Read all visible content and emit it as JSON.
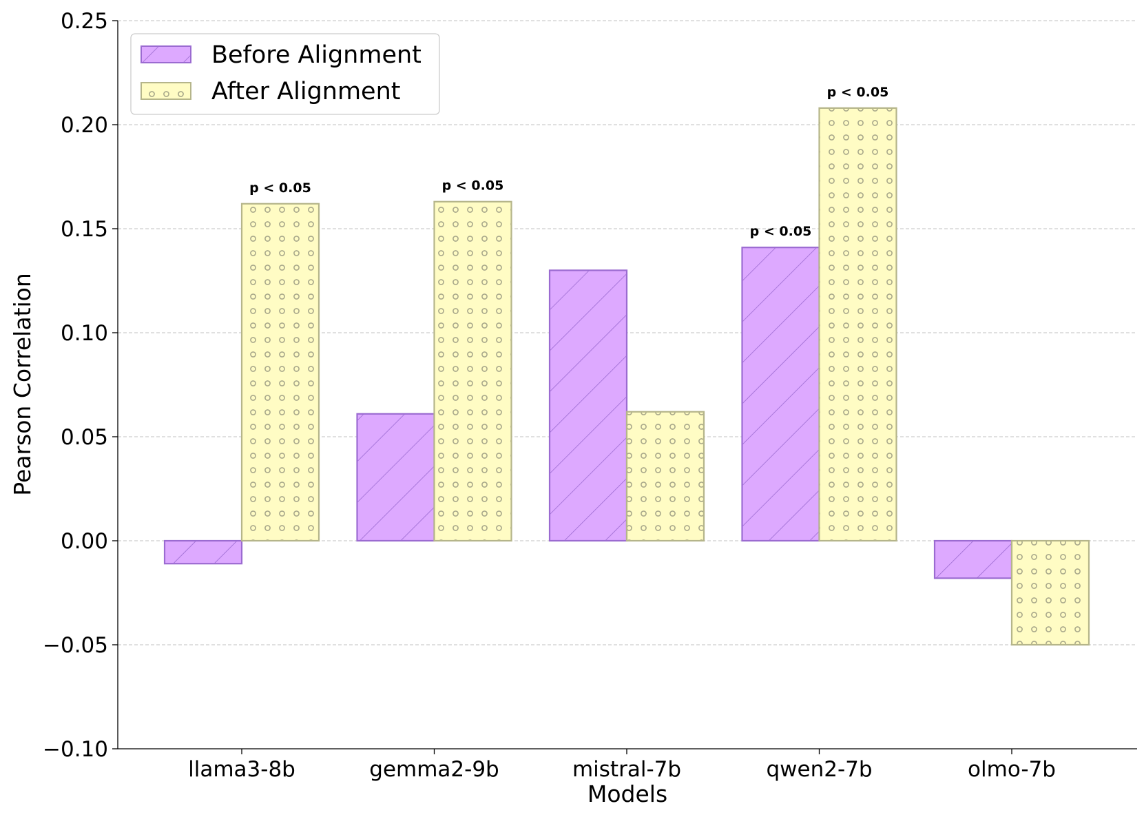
{
  "chart_data": {
    "type": "bar",
    "title": "",
    "xlabel": "Models",
    "ylabel": "Pearson Correlation",
    "categories": [
      "llama3-8b",
      "gemma2-9b",
      "mistral-7b",
      "qwen2-7b",
      "olmo-7b"
    ],
    "series": [
      {
        "name": "Before Alignment",
        "values": [
          -0.011,
          0.061,
          0.13,
          0.141,
          -0.018
        ],
        "annotations": [
          "",
          "",
          "",
          "p < 0.05",
          ""
        ]
      },
      {
        "name": "After Alignment",
        "values": [
          0.162,
          0.163,
          0.062,
          0.208,
          -0.05
        ],
        "annotations": [
          "p < 0.05",
          "p < 0.05",
          "",
          "p < 0.05",
          ""
        ]
      }
    ],
    "ylim": [
      -0.1,
      0.25
    ],
    "yticks": [
      -0.1,
      -0.05,
      0.0,
      0.05,
      0.1,
      0.15,
      0.2,
      0.25
    ],
    "ytick_labels": [
      "−0.10",
      "−0.05",
      "0.00",
      "0.05",
      "0.10",
      "0.15",
      "0.20",
      "0.25"
    ],
    "grid": "horizontal-dashed",
    "legend_position": "top-left",
    "colors": {
      "before_fill": "#dda9ff",
      "before_edge": "#9b6bd1",
      "after_fill": "#fffcc4",
      "after_edge": "#b5b58a",
      "grid": "#c0c0c0"
    }
  }
}
